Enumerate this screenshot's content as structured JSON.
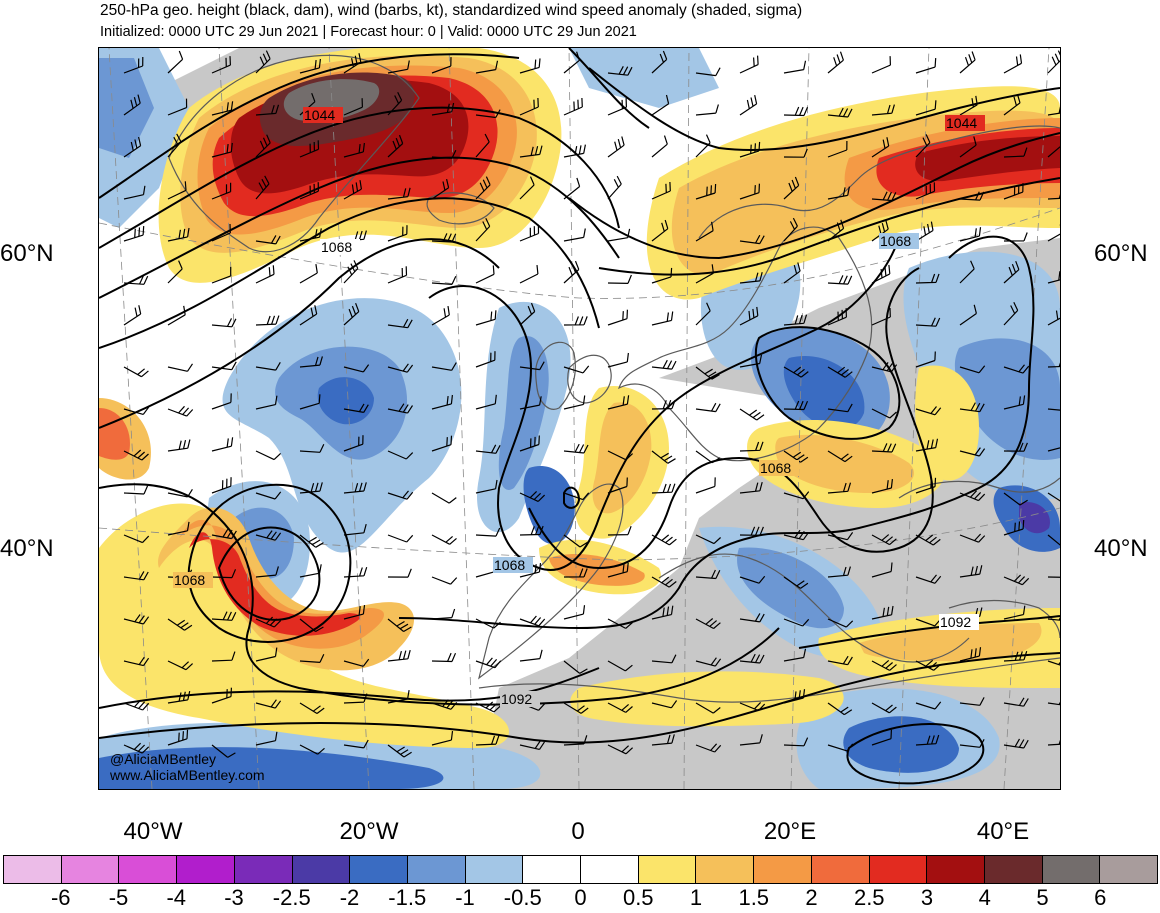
{
  "header": {
    "title": "250-hPa geo. height (black, dam), wind (barbs, kt), standardized wind speed anomaly (shaded, sigma)",
    "subtitle": "Initialized: 0000 UTC 29 Jun 2021 | Forecast hour: 0 | Valid: 0000 UTC 29 Jun 2021"
  },
  "map": {
    "lat_labels": {
      "left_60": "60°N",
      "right_60": "60°N",
      "left_40": "40°N",
      "right_40": "40°N"
    },
    "lon_labels": [
      "40°W",
      "20°W",
      "0",
      "20°E",
      "40°E"
    ],
    "contour_labels": [
      {
        "name": "label-1044-west",
        "text": "1044"
      },
      {
        "name": "label-1044-east",
        "text": "1044"
      },
      {
        "name": "label-1068-north-atlantic",
        "text": "1068"
      },
      {
        "name": "label-1068-north-russia",
        "text": "1068"
      },
      {
        "name": "label-1068-southwest",
        "text": "1068"
      },
      {
        "name": "label-1068-iberia",
        "text": "1068"
      },
      {
        "name": "label-1068-europe",
        "text": "1068"
      },
      {
        "name": "label-1092-east",
        "text": "1092"
      },
      {
        "name": "label-1092-africa",
        "text": "1092"
      }
    ],
    "credits": {
      "twitter": "@AliciaMBentley",
      "website": "www.AliciaMBentley.com"
    },
    "colors": {
      "coastline": "#5a5a5a",
      "contour": "#000000",
      "land_gray": "#c8c8c8"
    }
  },
  "colorbar": {
    "colors": [
      "#ecbce8",
      "#e684e0",
      "#d94ed7",
      "#b11ecc",
      "#7a2bb8",
      "#4b3aa6",
      "#3a6cc2",
      "#6c97d3",
      "#a3c6e6",
      "#ffffff",
      "#ffffff",
      "#fbe46a",
      "#f5c05a",
      "#f49a45",
      "#f06b3c",
      "#e22b20",
      "#a30f10",
      "#6a2a2c",
      "#736d6c",
      "#a89c9c"
    ],
    "ticks": [
      "-6",
      "-5",
      "-4",
      "-3",
      "-2.5",
      "-2",
      "-1.5",
      "-1",
      "-0.5",
      "0",
      "0.5",
      "1",
      "1.5",
      "2",
      "2.5",
      "3",
      "4",
      "5",
      "6"
    ]
  }
}
